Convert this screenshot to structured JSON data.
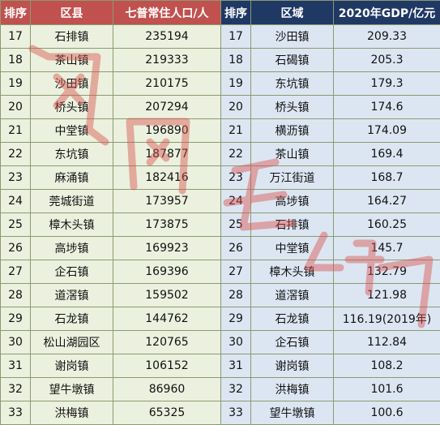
{
  "left_table": {
    "headers": [
      "排序",
      "区县",
      "七普常住人口/人"
    ],
    "rows": [
      [
        "17",
        "石排镇",
        "235194"
      ],
      [
        "18",
        "茶山镇",
        "219333"
      ],
      [
        "19",
        "沙田镇",
        "210175"
      ],
      [
        "20",
        "桥头镇",
        "207294"
      ],
      [
        "21",
        "中堂镇",
        "196890"
      ],
      [
        "22",
        "东坑镇",
        "187877"
      ],
      [
        "23",
        "麻涌镇",
        "182416"
      ],
      [
        "24",
        "莞城街道",
        "173957"
      ],
      [
        "25",
        "樟木头镇",
        "173875"
      ],
      [
        "26",
        "高埗镇",
        "169923"
      ],
      [
        "27",
        "企石镇",
        "169396"
      ],
      [
        "28",
        "道滘镇",
        "159502"
      ],
      [
        "29",
        "石龙镇",
        "144762"
      ],
      [
        "30",
        "松山湖园区",
        "120765"
      ],
      [
        "31",
        "谢岗镇",
        "106152"
      ],
      [
        "32",
        "望牛墩镇",
        "86960"
      ],
      [
        "33",
        "洪梅镇",
        "65325"
      ]
    ]
  },
  "right_table": {
    "headers": [
      "排序",
      "区域",
      "2020年GDP/亿元"
    ],
    "rows": [
      [
        "17",
        "沙田镇",
        "209.33"
      ],
      [
        "18",
        "石碣镇",
        "205.3"
      ],
      [
        "19",
        "东坑镇",
        "179.3"
      ],
      [
        "20",
        "桥头镇",
        "174.6"
      ],
      [
        "21",
        "横沥镇",
        "174.09"
      ],
      [
        "22",
        "茶山镇",
        "169.4"
      ],
      [
        "23",
        "万江街道",
        "168.7"
      ],
      [
        "24",
        "高埗镇",
        "164.27"
      ],
      [
        "25",
        "石排镇",
        "160.25"
      ],
      [
        "26",
        "中堂镇",
        "145.7"
      ],
      [
        "27",
        "樟木头镇",
        "132.79"
      ],
      [
        "28",
        "道滘镇",
        "121.98"
      ],
      [
        "29",
        "石龙镇",
        "116.19(2019年)"
      ],
      [
        "30",
        "企石镇",
        "112.84"
      ],
      [
        "31",
        "谢岗镇",
        "108.2"
      ],
      [
        "32",
        "洪梅镇",
        "101.6"
      ],
      [
        "33",
        "望牛墩镇",
        "100.6"
      ]
    ]
  },
  "colors": {
    "left_header_bg": "#c0514f",
    "left_cell_bg": "#ebf1de",
    "right_header_bg": "#1f3864",
    "right_cell_bg": "#dce6f2",
    "watermark": "#d9534f"
  }
}
